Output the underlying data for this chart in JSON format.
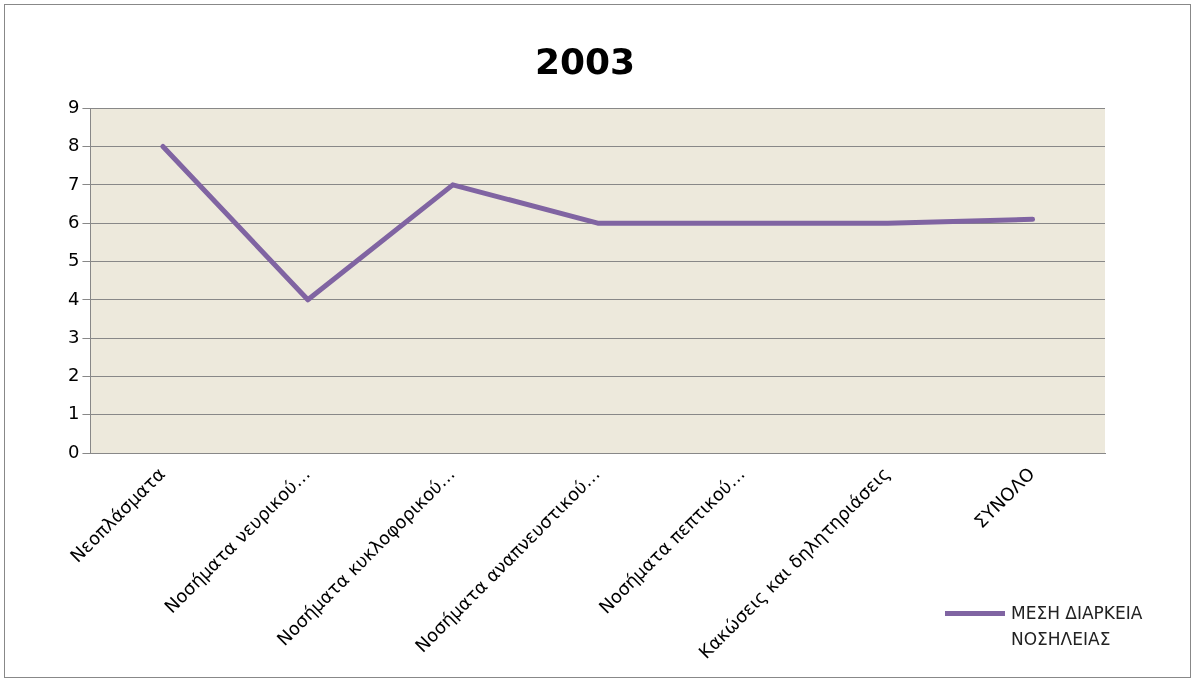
{
  "chart_data": {
    "type": "line",
    "title": "2003",
    "categories": [
      "Νεοπλάσματα",
      "Νοσήματα νευρικού…",
      "Νοσήματα κυκλοφορικού…",
      "Νοσήματα αναπνευστικού…",
      "Νοσήματα πεπτικού…",
      "Κακώσεις και δηλητηριάσεις",
      "ΣΥΝΟΛΟ"
    ],
    "series": [
      {
        "name": "ΜΕΣΗ ΔΙΑΡΚΕΙΑ ΝΟΣΗΛΕΙΑΣ",
        "color": "#8064a2",
        "values": [
          8,
          4,
          7,
          6,
          6,
          6,
          6.1
        ]
      }
    ],
    "ylim": [
      0,
      9
    ],
    "yticks": [
      0,
      1,
      2,
      3,
      4,
      5,
      6,
      7,
      8,
      9
    ],
    "grid": "y",
    "legend": "bottom right",
    "marker": "none",
    "line_style": "solid"
  }
}
